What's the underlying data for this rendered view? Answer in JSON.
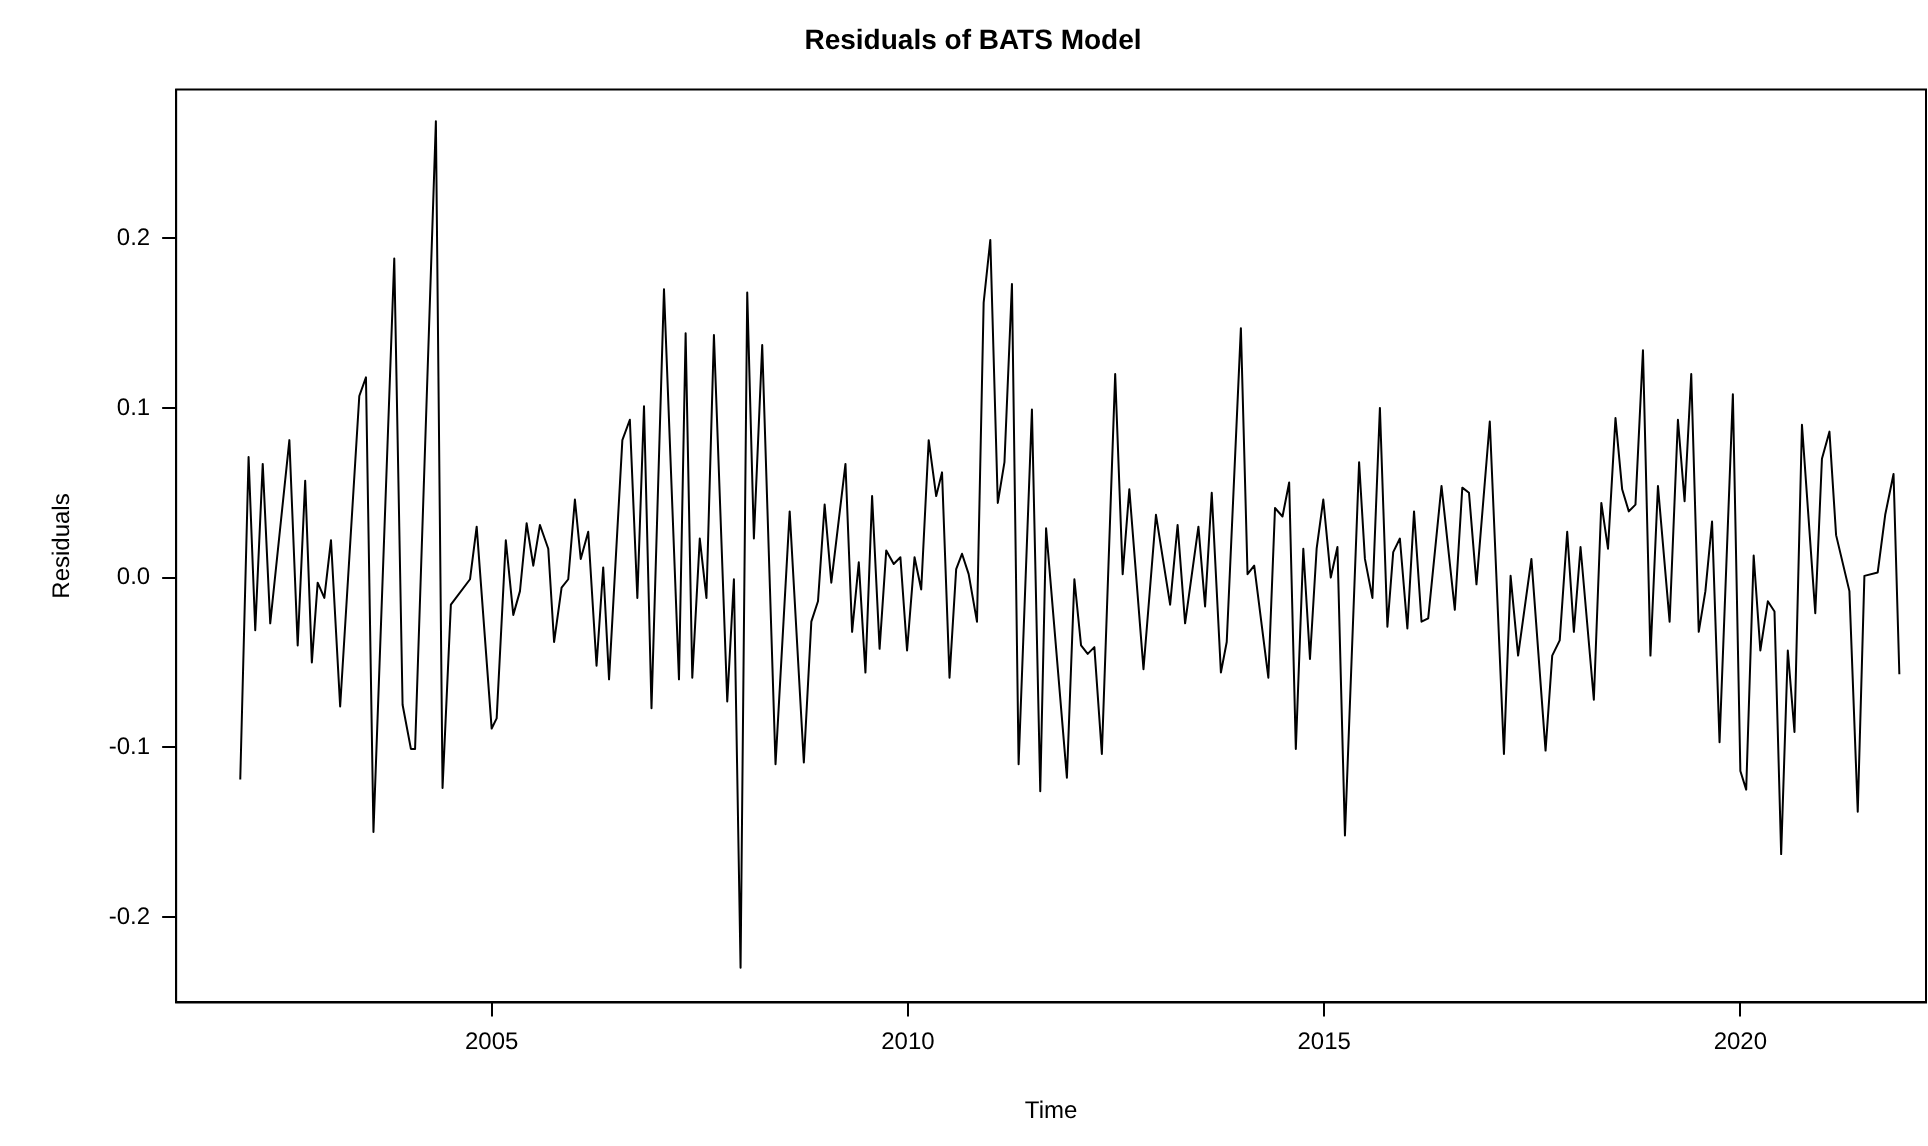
{
  "chart_data": {
    "type": "line",
    "title": "Residuals of BATS Model",
    "xlabel": "Time",
    "ylabel": "Residuals",
    "x": [
      2001.98,
      2002.08,
      2002.16,
      2002.25,
      2002.34,
      2002.57,
      2002.67,
      2002.76,
      2002.84,
      2002.91,
      2002.99,
      2003.07,
      2003.18,
      2003.41,
      2003.49,
      2003.58,
      2003.83,
      2003.93,
      2004.03,
      2004.08,
      2004.33,
      2004.41,
      2004.51,
      2004.74,
      2004.82,
      2005.0,
      2005.06,
      2005.17,
      2005.26,
      2005.34,
      2005.42,
      2005.5,
      2005.58,
      2005.68,
      2005.75,
      2005.84,
      2005.92,
      2006.0,
      2006.07,
      2006.16,
      2006.26,
      2006.34,
      2006.41,
      2006.57,
      2006.66,
      2006.75,
      2006.83,
      2006.92,
      2007.07,
      2007.25,
      2007.33,
      2007.41,
      2007.5,
      2007.58,
      2007.67,
      2007.83,
      2007.91,
      2007.99,
      2008.07,
      2008.15,
      2008.25,
      2008.41,
      2008.58,
      2008.75,
      2008.84,
      2008.92,
      2009.0,
      2009.08,
      2009.25,
      2009.33,
      2009.41,
      2009.49,
      2009.57,
      2009.66,
      2009.74,
      2009.83,
      2009.91,
      2009.99,
      2010.08,
      2010.16,
      2010.25,
      2010.34,
      2010.41,
      2010.5,
      2010.58,
      2010.65,
      2010.73,
      2010.83,
      2010.91,
      2010.99,
      2011.08,
      2011.16,
      2011.25,
      2011.33,
      2011.49,
      2011.59,
      2011.66,
      2011.91,
      2012.0,
      2012.08,
      2012.16,
      2012.24,
      2012.33,
      2012.49,
      2012.58,
      2012.66,
      2012.83,
      2012.98,
      2013.15,
      2013.24,
      2013.33,
      2013.49,
      2013.57,
      2013.65,
      2013.76,
      2013.83,
      2014.0,
      2014.08,
      2014.16,
      2014.33,
      2014.41,
      2014.5,
      2014.58,
      2014.66,
      2014.75,
      2014.83,
      2014.91,
      2014.99,
      2015.08,
      2015.16,
      2015.25,
      2015.42,
      2015.49,
      2015.58,
      2015.67,
      2015.76,
      2015.83,
      2015.91,
      2016.0,
      2016.08,
      2016.17,
      2016.25,
      2016.41,
      2016.57,
      2016.66,
      2016.74,
      2016.83,
      2016.99,
      2017.16,
      2017.24,
      2017.33,
      2017.49,
      2017.66,
      2017.74,
      2017.83,
      2017.92,
      2018.0,
      2018.08,
      2018.24,
      2018.33,
      2018.41,
      2018.5,
      2018.58,
      2018.66,
      2018.74,
      2018.83,
      2018.92,
      2019.01,
      2019.15,
      2019.25,
      2019.33,
      2019.41,
      2019.5,
      2019.58,
      2019.66,
      2019.75,
      2019.91,
      2020.0,
      2020.07,
      2020.16,
      2020.24,
      2020.33,
      2020.41,
      2020.49,
      2020.57,
      2020.65,
      2020.74,
      2020.9,
      2020.98,
      2021.07,
      2021.15,
      2021.31,
      2021.41,
      2021.49,
      2021.65,
      2021.74,
      2021.84,
      2021.91
    ],
    "series": [
      {
        "color": "#000000",
        "values": [
          -0.119,
          0.071,
          -0.031,
          0.067,
          -0.027,
          0.081,
          -0.04,
          0.057,
          -0.05,
          -0.003,
          -0.012,
          0.022,
          -0.076,
          0.107,
          0.118,
          -0.15,
          0.188,
          -0.075,
          -0.101,
          -0.101,
          0.269,
          -0.124,
          -0.016,
          -0.001,
          0.03,
          -0.089,
          -0.083,
          0.022,
          -0.022,
          -0.008,
          0.032,
          0.007,
          0.031,
          0.017,
          -0.038,
          -0.006,
          -0.001,
          0.046,
          0.011,
          0.027,
          -0.052,
          0.006,
          -0.06,
          0.081,
          0.093,
          -0.012,
          0.101,
          -0.077,
          0.17,
          -0.06,
          0.144,
          -0.059,
          0.023,
          -0.012,
          0.143,
          -0.073,
          -0.001,
          -0.23,
          0.168,
          0.023,
          0.137,
          -0.11,
          0.039,
          -0.109,
          -0.026,
          -0.014,
          0.043,
          -0.003,
          0.067,
          -0.032,
          0.009,
          -0.056,
          0.048,
          -0.042,
          0.016,
          0.008,
          0.012,
          -0.043,
          0.012,
          -0.007,
          0.081,
          0.048,
          0.062,
          -0.059,
          0.005,
          0.014,
          0.002,
          -0.026,
          0.162,
          0.199,
          0.044,
          0.068,
          0.173,
          -0.11,
          0.099,
          -0.126,
          0.029,
          -0.118,
          -0.001,
          -0.04,
          -0.045,
          -0.041,
          -0.104,
          0.12,
          0.002,
          0.052,
          -0.054,
          0.037,
          -0.016,
          0.031,
          -0.027,
          0.03,
          -0.017,
          0.05,
          -0.056,
          -0.038,
          0.147,
          0.002,
          0.007,
          -0.059,
          0.041,
          0.036,
          0.056,
          -0.101,
          0.017,
          -0.048,
          0.017,
          0.046,
          0.0,
          0.018,
          -0.152,
          0.068,
          0.011,
          -0.012,
          0.1,
          -0.029,
          0.015,
          0.023,
          -0.03,
          0.039,
          -0.026,
          -0.024,
          0.054,
          -0.019,
          0.053,
          0.05,
          -0.004,
          0.092,
          -0.104,
          0.001,
          -0.046,
          0.011,
          -0.102,
          -0.046,
          -0.037,
          0.027,
          -0.032,
          0.018,
          -0.072,
          0.044,
          0.017,
          0.094,
          0.052,
          0.039,
          0.043,
          0.134,
          -0.046,
          0.054,
          -0.026,
          0.093,
          0.045,
          0.12,
          -0.032,
          -0.008,
          0.033,
          -0.097,
          0.108,
          -0.114,
          -0.125,
          0.013,
          -0.043,
          -0.014,
          -0.02,
          -0.163,
          -0.043,
          -0.091,
          0.09,
          -0.021,
          0.07,
          0.086,
          0.025,
          -0.008,
          -0.138,
          0.001,
          0.003,
          0.037,
          0.061,
          -0.057
        ]
      }
    ],
    "xlim": [
      2001.21,
      2022.23
    ],
    "xticks": [
      2005,
      2010,
      2015,
      2020
    ],
    "ylim": [
      -0.2504,
      0.2876
    ],
    "yticks": [
      {
        "value": -0.2,
        "label": "-0.2"
      },
      {
        "value": -0.1,
        "label": "-0.1"
      },
      {
        "value": 0,
        "label": "0.0"
      },
      {
        "value": 0.1,
        "label": "0.1"
      },
      {
        "value": 0.2,
        "label": "0.2"
      }
    ],
    "grid": false,
    "legend": false,
    "marker": "none",
    "line_style": "solid"
  }
}
